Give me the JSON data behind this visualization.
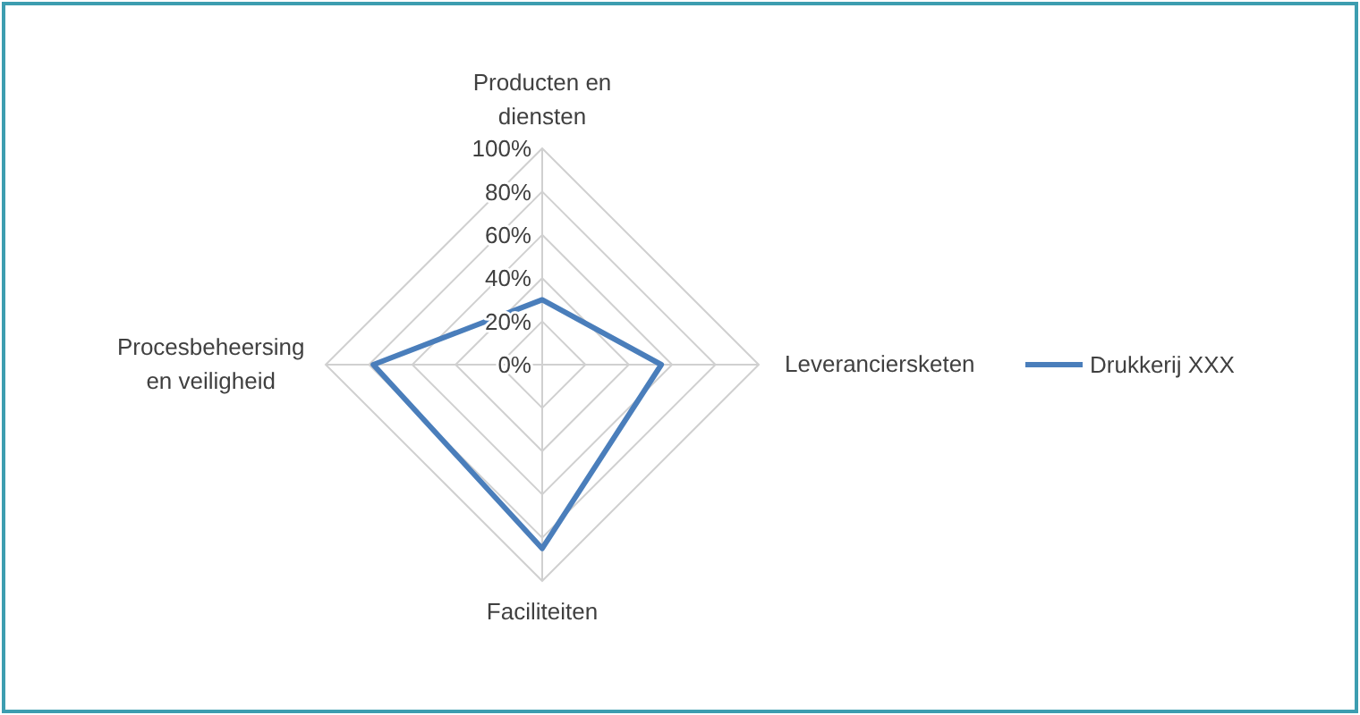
{
  "chart_data": {
    "type": "radar",
    "categories": [
      "Producten en diensten",
      "Leveranciersketen",
      "Faciliteiten",
      "Procesbeheersing en veiligheid"
    ],
    "series": [
      {
        "name": "Drukkerij XXX",
        "color": "#4a7ebb",
        "values": [
          30,
          55,
          85,
          78
        ]
      }
    ],
    "ylim": [
      0,
      100
    ],
    "yticks": [
      {
        "value": 0,
        "label": "0%"
      },
      {
        "value": 20,
        "label": "20%"
      },
      {
        "value": 40,
        "label": "40%"
      },
      {
        "value": 60,
        "label": "60%"
      },
      {
        "value": 80,
        "label": "80%"
      },
      {
        "value": 100,
        "label": "100%"
      }
    ],
    "grid": true,
    "legend": "right"
  }
}
